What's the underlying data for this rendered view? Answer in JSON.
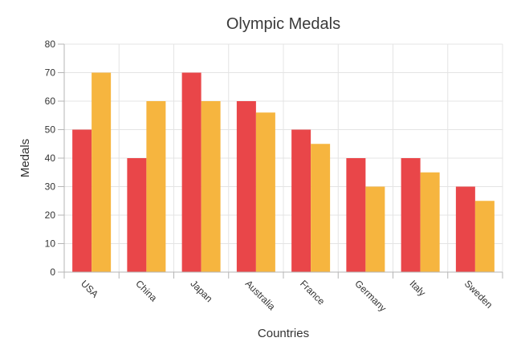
{
  "chart_data": {
    "type": "bar",
    "title": "Olympic Medals",
    "xlabel": "Countries",
    "ylabel": "Medals",
    "categories": [
      "USA",
      "China",
      "Japan",
      "Australia",
      "France",
      "Germany",
      "Italy",
      "Sweden"
    ],
    "series": [
      {
        "values": [
          50,
          40,
          70,
          60,
          50,
          40,
          40,
          30
        ],
        "color": "#e94649"
      },
      {
        "values": [
          70,
          60,
          60,
          56,
          45,
          30,
          35,
          25
        ],
        "color": "#f6b53f"
      }
    ],
    "ylim": [
      0,
      80
    ],
    "yticks": [
      0,
      10,
      20,
      30,
      40,
      50,
      60,
      70,
      80
    ],
    "grid": true,
    "legend": "none"
  }
}
